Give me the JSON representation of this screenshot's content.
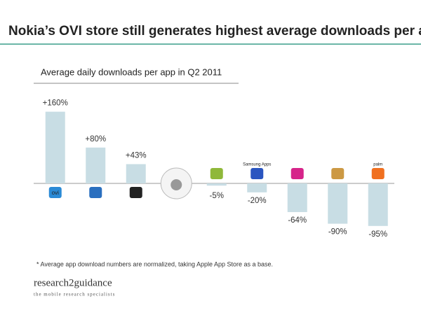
{
  "chart_data": {
    "type": "bar",
    "title": "Nokia’s OVI store still generates highest average downloads per app",
    "subtitle": "Average daily downloads per app in Q2 2011",
    "categories": [
      "ovi",
      null,
      null,
      null,
      null,
      "Samsung Apps",
      null,
      null,
      "palm"
    ],
    "values": [
      160,
      80,
      43,
      0,
      -5,
      -20,
      -64,
      -90,
      -95
    ],
    "value_labels": [
      "+160%",
      "+80%",
      "+43%",
      null,
      "-5%",
      "-20%",
      "-64%",
      "-90%",
      "-95%"
    ],
    "color": "#c8dde4",
    "footnote": "* Average app download numbers are normalized, taking Apple App Store as a base.",
    "brand": "research2guidance",
    "brand_tagline": "the mobile research specialists"
  }
}
